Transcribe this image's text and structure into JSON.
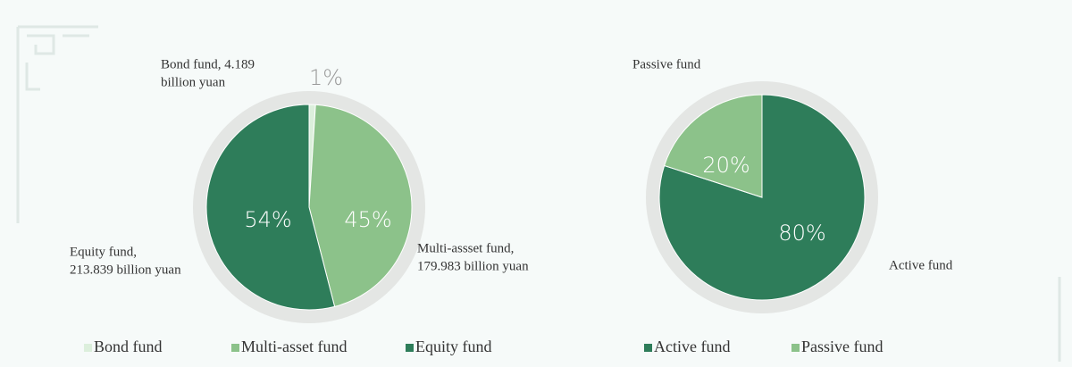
{
  "chart_data": [
    {
      "type": "pie",
      "categories": [
        "Bond fund",
        "Multi-asset fund",
        "Equity fund"
      ],
      "values": [
        1,
        45,
        54
      ],
      "value_labels": [
        "1%",
        "45%",
        "54%"
      ],
      "colors": [
        "#dcefdc",
        "#8cc28a",
        "#2e7d5a"
      ],
      "annotations": [
        [
          "Bond fund, 4.189",
          "billion yuan"
        ],
        [
          "Multi-assset fund,",
          "179.983 billion yuan"
        ],
        [
          "Equity fund,",
          "213.839 billion yuan"
        ]
      ]
    },
    {
      "type": "pie",
      "categories": [
        "Active fund",
        "Passive fund"
      ],
      "values": [
        80,
        20
      ],
      "value_labels": [
        "80%",
        "20%"
      ],
      "colors": [
        "#2e7d5a",
        "#8cc28a"
      ],
      "annotations": [
        [
          "Active fund"
        ],
        [
          "Passive fund"
        ]
      ]
    }
  ]
}
